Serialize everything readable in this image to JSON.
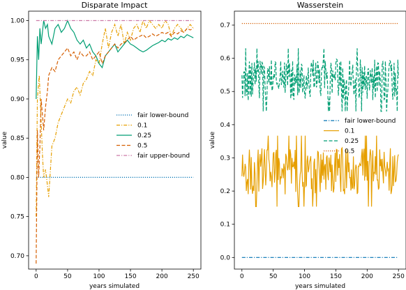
{
  "chart_data": [
    {
      "type": "line",
      "title": "Disparate Impact",
      "xlabel": "years simulated",
      "ylabel": "value",
      "xlim": [
        -12,
        262
      ],
      "ylim": [
        0.683,
        1.012
      ],
      "xticks": [
        0,
        50,
        100,
        150,
        200,
        250
      ],
      "yticks": [
        0.7,
        0.75,
        0.8,
        0.85,
        0.9,
        0.95,
        1.0
      ],
      "ytick_labels": [
        "0.70",
        "0.75",
        "0.80",
        "0.85",
        "0.90",
        "0.95",
        "1.00"
      ],
      "grid": false,
      "legend_position": "center-right",
      "series": [
        {
          "name": "fair lower-bound",
          "color": "#0072b2",
          "style": "dotted",
          "x": [
            0,
            250
          ],
          "y": [
            0.8,
            0.8
          ]
        },
        {
          "name": "0.1",
          "color": "#e69f00",
          "style": "dashdot",
          "x": [
            0,
            2,
            5,
            8,
            10,
            12,
            15,
            18,
            20,
            22,
            25,
            30,
            35,
            40,
            45,
            50,
            55,
            60,
            65,
            70,
            75,
            80,
            85,
            90,
            95,
            100,
            105,
            110,
            115,
            120,
            125,
            130,
            135,
            140,
            145,
            150,
            155,
            160,
            165,
            170,
            175,
            180,
            185,
            190,
            195,
            200,
            205,
            210,
            215,
            220,
            225,
            230,
            235,
            240,
            245,
            250
          ],
          "y": [
            0.75,
            0.9,
            0.93,
            0.87,
            0.83,
            0.8,
            0.81,
            0.79,
            0.775,
            0.8,
            0.84,
            0.85,
            0.87,
            0.88,
            0.89,
            0.9,
            0.895,
            0.91,
            0.915,
            0.905,
            0.92,
            0.925,
            0.935,
            0.93,
            0.95,
            0.945,
            0.97,
            0.99,
            0.965,
            0.985,
            0.995,
            0.98,
            0.995,
            0.97,
            0.985,
            0.975,
            0.99,
            0.995,
            0.985,
            1.0,
            0.99,
            1.0,
            0.995,
            0.99,
            0.995,
            0.99,
            1.0,
            0.995,
            0.98,
            0.99,
            0.995,
            0.99,
            0.985,
            0.99,
            0.995,
            0.99
          ]
        },
        {
          "name": "0.25",
          "color": "#009e73",
          "style": "solid",
          "x": [
            0,
            2,
            4,
            6,
            8,
            10,
            12,
            15,
            18,
            20,
            25,
            30,
            35,
            40,
            45,
            50,
            55,
            60,
            65,
            70,
            75,
            80,
            85,
            90,
            95,
            100,
            105,
            110,
            115,
            120,
            125,
            130,
            135,
            140,
            145,
            150,
            155,
            160,
            165,
            170,
            175,
            180,
            185,
            190,
            195,
            200,
            205,
            210,
            215,
            220,
            225,
            230,
            235,
            240,
            245,
            250
          ],
          "y": [
            0.9,
            0.98,
            0.95,
            0.99,
            0.97,
            0.985,
            1.0,
            0.99,
            0.995,
            0.98,
            0.97,
            0.99,
            0.995,
            0.985,
            0.99,
            1.0,
            0.99,
            0.985,
            0.975,
            0.97,
            0.975,
            0.965,
            0.97,
            0.96,
            0.955,
            0.945,
            0.94,
            0.955,
            0.96,
            0.965,
            0.97,
            0.96,
            0.965,
            0.97,
            0.975,
            0.97,
            0.968,
            0.965,
            0.962,
            0.96,
            0.962,
            0.965,
            0.968,
            0.97,
            0.972,
            0.975,
            0.973,
            0.977,
            0.975,
            0.978,
            0.976,
            0.98,
            0.978,
            0.982,
            0.98,
            0.978
          ]
        },
        {
          "name": "0.5",
          "color": "#d55e00",
          "style": "dashed",
          "x": [
            0,
            2,
            4,
            6,
            8,
            10,
            12,
            15,
            18,
            20,
            25,
            30,
            35,
            40,
            45,
            50,
            55,
            60,
            65,
            70,
            75,
            80,
            85,
            90,
            95,
            100,
            105,
            110,
            115,
            120,
            125,
            130,
            135,
            140,
            145,
            150,
            155,
            160,
            165,
            170,
            175,
            180,
            185,
            190,
            195,
            200,
            205,
            210,
            215,
            220,
            225,
            230,
            235,
            240,
            245,
            250
          ],
          "y": [
            0.69,
            0.86,
            0.8,
            0.84,
            0.9,
            0.88,
            0.86,
            0.89,
            0.91,
            0.93,
            0.94,
            0.935,
            0.95,
            0.955,
            0.96,
            0.965,
            0.955,
            0.96,
            0.95,
            0.96,
            0.955,
            0.955,
            0.96,
            0.95,
            0.955,
            0.96,
            0.945,
            0.955,
            0.96,
            0.965,
            0.97,
            0.965,
            0.97,
            0.972,
            0.975,
            0.98,
            0.975,
            0.978,
            0.98,
            0.982,
            0.978,
            0.98,
            0.983,
            0.98,
            0.982,
            0.985,
            0.983,
            0.985,
            0.98,
            0.985,
            0.983,
            0.987,
            0.985,
            0.99,
            0.988,
            0.99
          ]
        },
        {
          "name": "fair upper-bound",
          "color": "#cc79a7",
          "style": "dashdot",
          "x": [
            0,
            250
          ],
          "y": [
            1.0,
            1.0
          ]
        }
      ]
    },
    {
      "type": "line",
      "title": "Wasserstein",
      "xlabel": "years simulated",
      "ylabel": "value",
      "xlim": [
        -12,
        262
      ],
      "ylim": [
        -0.035,
        0.742
      ],
      "xticks": [
        0,
        50,
        100,
        150,
        200,
        250
      ],
      "yticks": [
        0.0,
        0.1,
        0.2,
        0.3,
        0.4,
        0.5,
        0.6,
        0.7
      ],
      "ytick_labels": [
        "0.0",
        "0.1",
        "0.2",
        "0.3",
        "0.4",
        "0.5",
        "0.6",
        "0.7"
      ],
      "grid": false,
      "legend_position": "center-right",
      "series": [
        {
          "name": "fair lower-bound",
          "color": "#0072b2",
          "style": "dashdot",
          "x": [
            0,
            250
          ],
          "y": [
            0.0,
            0.0
          ]
        },
        {
          "name": "0.1",
          "color": "#e69f00",
          "style": "solid",
          "generated_points": 250,
          "mean": 0.26,
          "min": 0.145,
          "max": 0.37
        },
        {
          "name": "0.25",
          "color": "#009e73",
          "style": "dashed",
          "generated_points": 250,
          "mean": 0.535,
          "min": 0.43,
          "max": 0.63
        },
        {
          "name": "0.5",
          "color": "#d55e00",
          "style": "dotted",
          "x": [
            0,
            250
          ],
          "y": [
            0.705,
            0.705
          ]
        }
      ]
    }
  ]
}
